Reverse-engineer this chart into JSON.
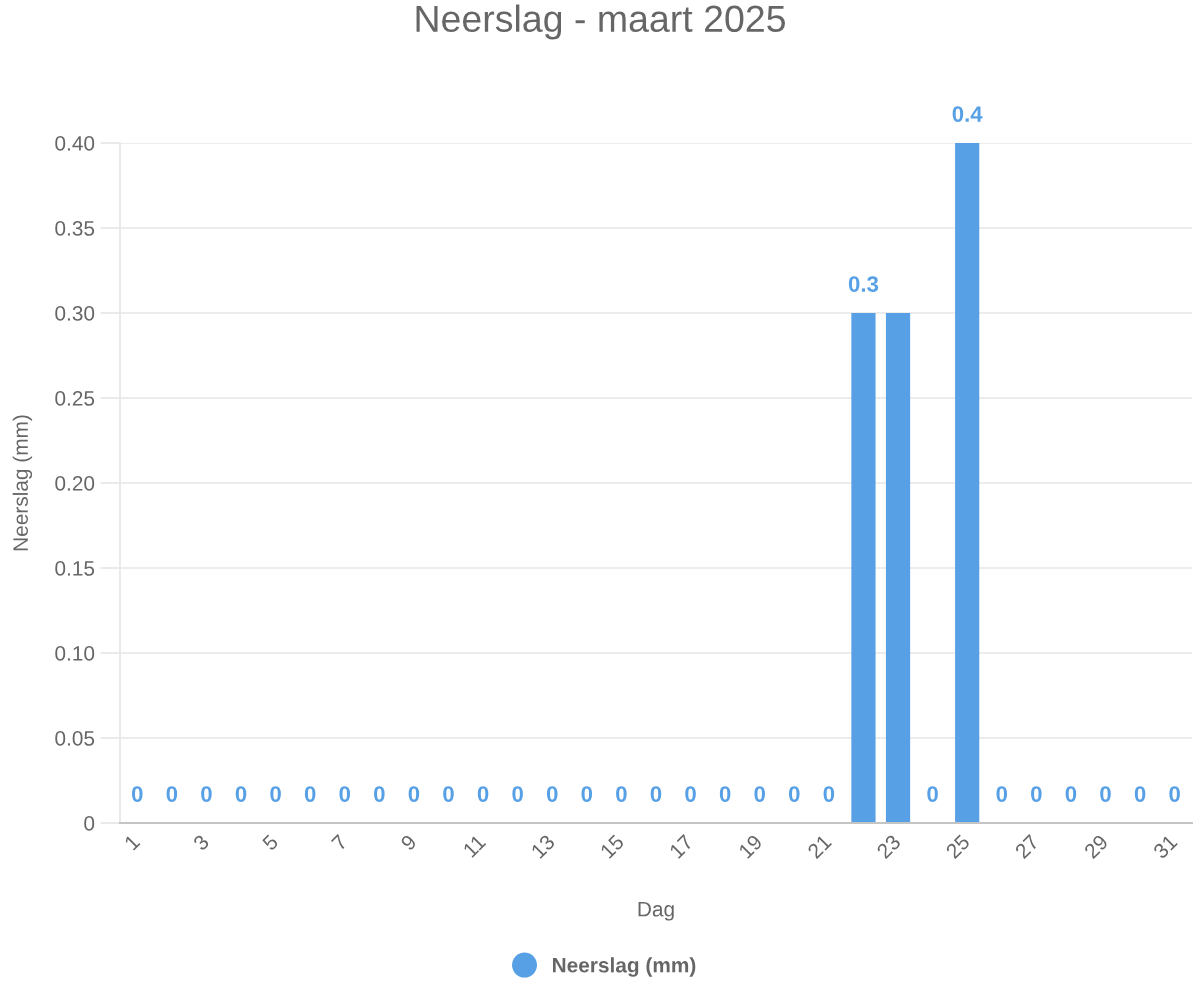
{
  "chart_data": {
    "type": "bar",
    "title": "Neerslag - maart 2025",
    "xlabel": "Dag",
    "ylabel": "Neerslag (mm)",
    "categories": [
      "1",
      null,
      "3",
      null,
      "5",
      null,
      "7",
      null,
      "9",
      null,
      "11",
      null,
      "13",
      null,
      "15",
      null,
      "17",
      null,
      "19",
      null,
      "21",
      null,
      "23",
      null,
      "25",
      null,
      "27",
      null,
      "29",
      null,
      "31"
    ],
    "series": [
      {
        "name": "Neerslag (mm)",
        "color": "#57a0e5",
        "values": [
          0,
          0,
          0,
          0,
          0,
          0,
          0,
          0,
          0,
          0,
          0,
          0,
          0,
          0,
          0,
          0,
          0,
          0,
          0,
          0,
          0,
          0.3,
          0.3,
          0,
          0.4,
          0,
          0,
          0,
          0,
          0,
          0
        ],
        "value_labels": [
          "0",
          "0",
          "0",
          "0",
          "0",
          "0",
          "0",
          "0",
          "0",
          "0",
          "0",
          "0",
          "0",
          "0",
          "0",
          "0",
          "0",
          "0",
          "0",
          "0",
          "0",
          "0.3",
          null,
          "0",
          "0.4",
          "0",
          "0",
          "0",
          "0",
          "0",
          "0"
        ]
      }
    ],
    "ylim": [
      0,
      0.4
    ],
    "yticks": [
      0,
      0.05,
      {
        "value": 0.1,
        "label": "0.10"
      },
      0.15,
      {
        "value": 0.2,
        "label": "0.20"
      },
      0.25,
      {
        "value": 0.3,
        "label": "0.30"
      },
      0.35,
      {
        "value": 0.4,
        "label": "0.40"
      }
    ],
    "grid": "y",
    "legend": "bottom"
  }
}
